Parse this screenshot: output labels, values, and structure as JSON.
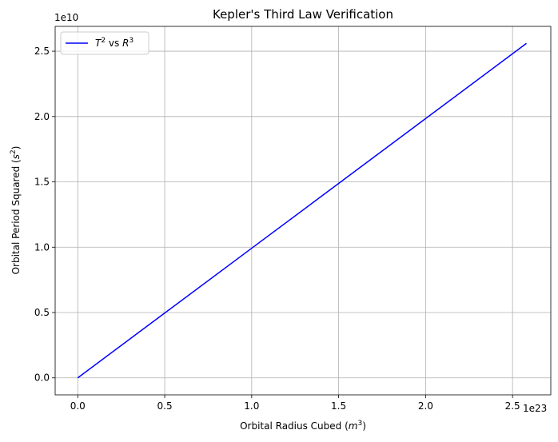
{
  "chart_data": {
    "type": "line",
    "title": "Kepler's Third Law Verification",
    "xlabel": {
      "text": "Orbital Radius Cubed (",
      "var": "m",
      "sup": "3",
      "end": ")"
    },
    "ylabel": {
      "text": "Orbital Period Squared (",
      "var": "s",
      "sup": "2",
      "end": ")"
    },
    "x_offset_label": "1e23",
    "y_offset_label": "1e10",
    "xlim": [
      -0.13,
      2.72
    ],
    "ylim": [
      -0.13,
      2.69
    ],
    "x_ticks": [
      {
        "value": 0.0,
        "label": "0.0"
      },
      {
        "value": 0.5,
        "label": "0.5"
      },
      {
        "value": 1.0,
        "label": "1.0"
      },
      {
        "value": 1.5,
        "label": "1.5"
      },
      {
        "value": 2.0,
        "label": "2.0"
      },
      {
        "value": 2.5,
        "label": "2.5"
      }
    ],
    "y_ticks": [
      {
        "value": 0.0,
        "label": "0.0"
      },
      {
        "value": 0.5,
        "label": "0.5"
      },
      {
        "value": 1.0,
        "label": "1.0"
      },
      {
        "value": 1.5,
        "label": "1.5"
      },
      {
        "value": 2.0,
        "label": "2.0"
      },
      {
        "value": 2.5,
        "label": "2.5"
      }
    ],
    "grid": true,
    "legend_position": "upper-left",
    "series": [
      {
        "legend": {
          "a": "T",
          "a_sup": "2",
          "mid": " vs ",
          "b": "R",
          "b_sup": "3"
        },
        "color": "#0000ff",
        "x": [
          0.0,
          0.5,
          1.0,
          1.5,
          2.0,
          2.58
        ],
        "y": [
          0.0,
          0.496,
          0.992,
          1.488,
          1.984,
          2.56
        ]
      }
    ]
  }
}
